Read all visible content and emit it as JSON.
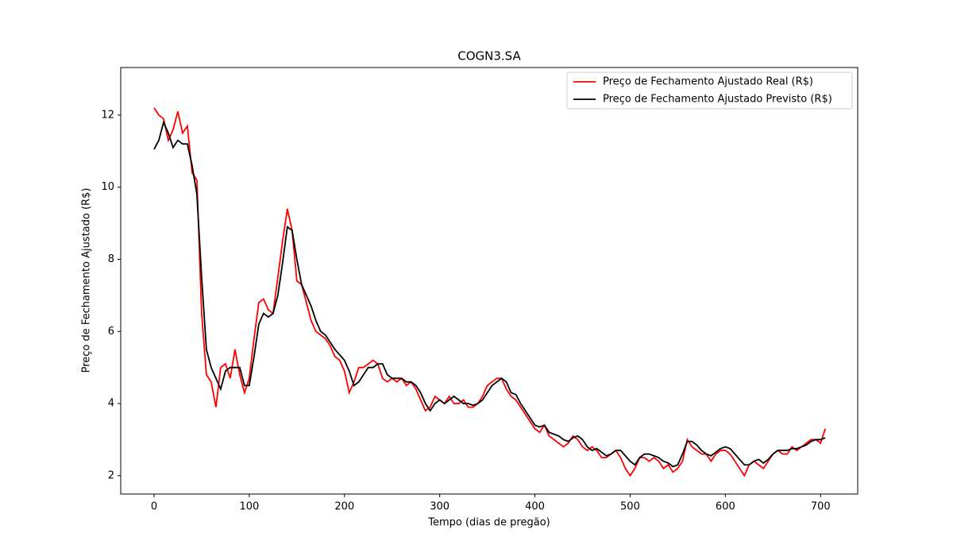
{
  "chart_data": {
    "type": "line",
    "title": "COGN3.SA",
    "xlabel": "Tempo (dias de pregão)",
    "ylabel": "Preço de Fechamento Ajustado (R$)",
    "x": [
      0,
      5,
      10,
      15,
      20,
      25,
      30,
      35,
      40,
      45,
      50,
      55,
      60,
      65,
      70,
      75,
      80,
      85,
      90,
      95,
      100,
      105,
      110,
      115,
      120,
      125,
      130,
      135,
      140,
      145,
      150,
      155,
      160,
      165,
      170,
      175,
      180,
      185,
      190,
      195,
      200,
      205,
      210,
      215,
      220,
      225,
      230,
      235,
      240,
      245,
      250,
      255,
      260,
      265,
      270,
      275,
      280,
      285,
      290,
      295,
      300,
      305,
      310,
      315,
      320,
      325,
      330,
      335,
      340,
      345,
      350,
      355,
      360,
      365,
      370,
      375,
      380,
      385,
      390,
      395,
      400,
      405,
      410,
      415,
      420,
      425,
      430,
      435,
      440,
      445,
      450,
      455,
      460,
      465,
      470,
      475,
      480,
      485,
      490,
      495,
      500,
      505,
      510,
      515,
      520,
      525,
      530,
      535,
      540,
      545,
      550,
      555,
      560,
      565,
      570,
      575,
      580,
      585,
      590,
      595,
      600,
      605,
      610,
      615,
      620,
      625,
      630,
      635,
      640,
      645,
      650,
      655,
      660,
      665,
      670,
      675,
      680,
      685,
      690,
      695,
      700,
      705
    ],
    "series": [
      {
        "name": "Preço de Fechamento Ajustado Real (R$)",
        "color": "#ff0000",
        "values": [
          12.2,
          12.0,
          11.9,
          11.3,
          11.6,
          12.1,
          11.5,
          11.7,
          10.4,
          10.2,
          6.5,
          4.8,
          4.6,
          3.9,
          5.0,
          5.1,
          4.7,
          5.5,
          4.8,
          4.3,
          4.7,
          5.8,
          6.8,
          6.9,
          6.6,
          6.5,
          7.5,
          8.5,
          9.4,
          8.8,
          7.4,
          7.3,
          6.8,
          6.3,
          6.0,
          5.9,
          5.8,
          5.6,
          5.3,
          5.2,
          4.9,
          4.3,
          4.6,
          5.0,
          5.0,
          5.1,
          5.2,
          5.1,
          4.7,
          4.6,
          4.7,
          4.6,
          4.7,
          4.5,
          4.6,
          4.4,
          4.1,
          3.8,
          3.9,
          4.2,
          4.1,
          4.0,
          4.2,
          4.0,
          4.0,
          4.1,
          3.9,
          3.9,
          4.0,
          4.2,
          4.5,
          4.6,
          4.7,
          4.7,
          4.4,
          4.2,
          4.1,
          3.9,
          3.7,
          3.5,
          3.3,
          3.2,
          3.4,
          3.1,
          3.0,
          2.9,
          2.8,
          2.9,
          3.1,
          3.0,
          2.8,
          2.7,
          2.8,
          2.7,
          2.5,
          2.5,
          2.6,
          2.7,
          2.5,
          2.2,
          2.0,
          2.2,
          2.5,
          2.5,
          2.4,
          2.5,
          2.4,
          2.2,
          2.3,
          2.1,
          2.2,
          2.4,
          3.0,
          2.8,
          2.7,
          2.6,
          2.6,
          2.4,
          2.6,
          2.7,
          2.7,
          2.6,
          2.4,
          2.2,
          2.0,
          2.3,
          2.4,
          2.3,
          2.2,
          2.4,
          2.6,
          2.7,
          2.6,
          2.6,
          2.8,
          2.7,
          2.8,
          2.9,
          3.0,
          3.0,
          2.9,
          3.3
        ]
      },
      {
        "name": "Preço de Fechamento Ajustado Previsto (R$)",
        "color": "#000000",
        "values": [
          11.05,
          11.3,
          11.8,
          11.5,
          11.1,
          11.3,
          11.2,
          11.2,
          10.6,
          9.8,
          7.5,
          5.5,
          5.0,
          4.7,
          4.4,
          4.9,
          5.0,
          5.0,
          5.0,
          4.5,
          4.5,
          5.3,
          6.2,
          6.5,
          6.4,
          6.5,
          7.0,
          7.9,
          8.9,
          8.8,
          8.0,
          7.3,
          7.0,
          6.7,
          6.3,
          6.0,
          5.9,
          5.7,
          5.5,
          5.35,
          5.2,
          4.9,
          4.5,
          4.6,
          4.8,
          5.0,
          5.0,
          5.1,
          5.1,
          4.8,
          4.7,
          4.7,
          4.7,
          4.6,
          4.6,
          4.5,
          4.3,
          4.0,
          3.8,
          4.0,
          4.1,
          4.0,
          4.1,
          4.2,
          4.1,
          4.0,
          4.0,
          3.95,
          4.0,
          4.1,
          4.3,
          4.5,
          4.6,
          4.7,
          4.6,
          4.3,
          4.25,
          4.0,
          3.8,
          3.6,
          3.4,
          3.35,
          3.4,
          3.2,
          3.15,
          3.1,
          3.0,
          2.95,
          3.05,
          3.1,
          3.0,
          2.8,
          2.7,
          2.75,
          2.65,
          2.55,
          2.6,
          2.7,
          2.7,
          2.55,
          2.4,
          2.3,
          2.5,
          2.6,
          2.6,
          2.55,
          2.5,
          2.4,
          2.35,
          2.25,
          2.3,
          2.6,
          2.95,
          2.95,
          2.85,
          2.7,
          2.6,
          2.55,
          2.65,
          2.75,
          2.8,
          2.75,
          2.6,
          2.45,
          2.3,
          2.3,
          2.4,
          2.45,
          2.35,
          2.45,
          2.6,
          2.7,
          2.7,
          2.7,
          2.75,
          2.75,
          2.8,
          2.85,
          2.95,
          3.0,
          3.0,
          3.05
        ]
      }
    ],
    "xlim": [
      -35,
      739
    ],
    "ylim": [
      1.49,
      13.32
    ],
    "xticks": [
      0,
      100,
      200,
      300,
      400,
      500,
      600,
      700
    ],
    "yticks": [
      2,
      4,
      6,
      8,
      10,
      12
    ],
    "legend": "upper right"
  }
}
